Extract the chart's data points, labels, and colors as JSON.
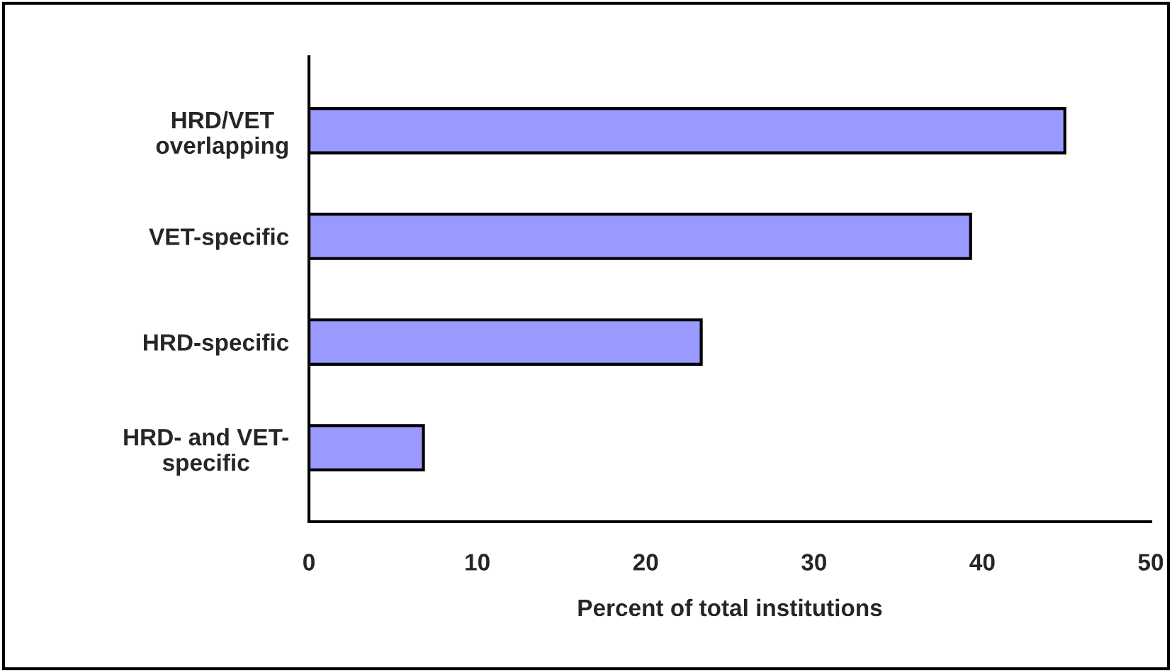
{
  "chart_data": {
    "type": "bar",
    "orientation": "horizontal",
    "xlabel": "Percent of total institutions",
    "categories": [
      "HRD/VET\noverlapping",
      "VET-specific",
      "HRD-specific",
      "HRD- and VET-\nspecific"
    ],
    "values": [
      44.9,
      39.3,
      23.3,
      6.8
    ],
    "color": "#9999ff",
    "xlim": [
      0,
      50
    ],
    "xticks": [
      0,
      10,
      20,
      30,
      40,
      50
    ],
    "grid": false,
    "legend": false
  }
}
